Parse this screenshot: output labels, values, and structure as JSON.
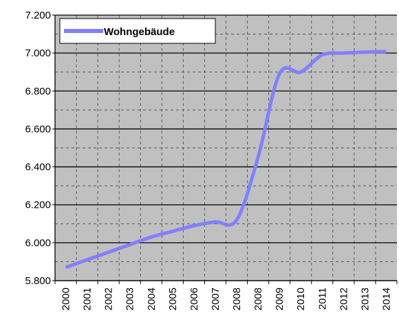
{
  "chart_data": {
    "type": "line",
    "categories": [
      "2000",
      "2001",
      "2002",
      "2003",
      "2004",
      "2005",
      "2006",
      "2007",
      "2008",
      "2008",
      "2009",
      "2010",
      "2011",
      "2012",
      "2013",
      "2014"
    ],
    "series": [
      {
        "name": "Wohngebäude",
        "color": "#8080ff",
        "values": [
          5870,
          5910,
          5950,
          5990,
          6030,
          6060,
          6090,
          6110,
          6120,
          6450,
          6890,
          6900,
          6990,
          7000,
          7005,
          7008
        ]
      }
    ],
    "ylim": [
      5800,
      7200
    ],
    "yticks": [
      {
        "value": 5800,
        "label": "5.800"
      },
      {
        "value": 6000,
        "label": "6.000"
      },
      {
        "value": 6200,
        "label": "6.200"
      },
      {
        "value": 6400,
        "label": "6.400"
      },
      {
        "value": 6600,
        "label": "6.600"
      },
      {
        "value": 6800,
        "label": "6.800"
      },
      {
        "value": 7000,
        "label": "7.000"
      },
      {
        "value": 7200,
        "label": "7.200"
      }
    ],
    "grid": true,
    "legend": "top-left"
  }
}
